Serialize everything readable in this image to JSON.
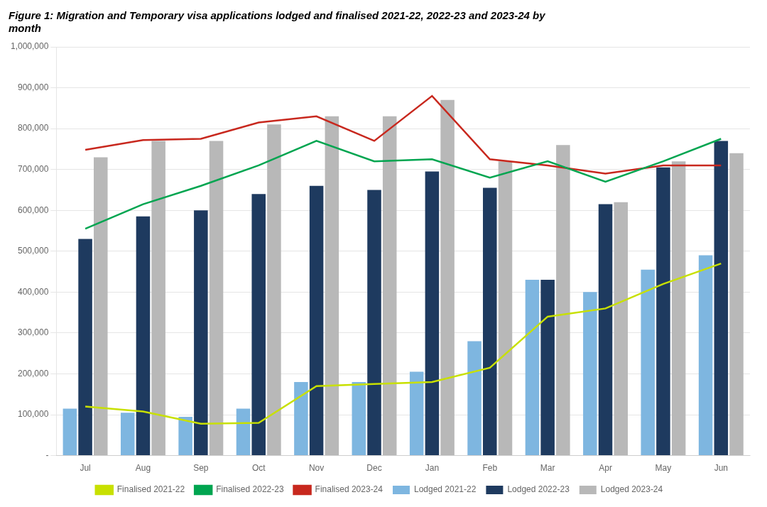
{
  "chart_data": {
    "type": "bar",
    "title": "Figure 1:",
    "subtitle": "Migration and Temporary visa applications lodged and finalised 2021-22, 2022-23 and 2023-24 by\nmonth",
    "categories": [
      "Jul",
      "Aug",
      "Sep",
      "Oct",
      "Nov",
      "Dec",
      "Jan",
      "Feb",
      "Mar",
      "Apr",
      "May",
      "Jun"
    ],
    "series": [
      {
        "name": "Lodged 2021-22",
        "type": "bar",
        "color": "#7EB6E0",
        "values": [
          115000,
          105000,
          95000,
          115000,
          180000,
          180000,
          205000,
          280000,
          430000,
          400000,
          455000,
          490000
        ]
      },
      {
        "name": "Lodged 2022-23",
        "type": "bar",
        "color": "#1E3A5F",
        "values": [
          530000,
          585000,
          600000,
          640000,
          660000,
          650000,
          695000,
          655000,
          430000,
          615000,
          705000,
          770000
        ]
      },
      {
        "name": "Lodged 2023-24",
        "type": "bar",
        "color": "#B8B8B8",
        "values": [
          730000,
          770000,
          770000,
          810000,
          830000,
          830000,
          870000,
          720000,
          760000,
          620000,
          720000,
          740000
        ]
      },
      {
        "name": "Finalised 2021-22",
        "type": "line",
        "color": "#C8E000",
        "values": [
          120000,
          108000,
          78000,
          80000,
          170000,
          175000,
          180000,
          215000,
          340000,
          360000,
          420000,
          470000
        ]
      },
      {
        "name": "Finalised 2022-23",
        "type": "line",
        "color": "#00A550",
        "values": [
          555000,
          615000,
          660000,
          710000,
          770000,
          720000,
          725000,
          680000,
          720000,
          670000,
          720000,
          775000
        ]
      },
      {
        "name": "Finalised 2023-24",
        "type": "line",
        "color": "#C8281E",
        "values": [
          748000,
          772000,
          775000,
          815000,
          830000,
          770000,
          880000,
          725000,
          710000,
          690000,
          710000,
          710000
        ]
      }
    ],
    "ylim": [
      0,
      1000000
    ],
    "yticks": [
      {
        "value": 0,
        "label": "-"
      },
      {
        "value": 100000,
        "label": "100,000"
      },
      {
        "value": 200000,
        "label": "200,000"
      },
      {
        "value": 300000,
        "label": "300,000"
      },
      {
        "value": 400000,
        "label": "400,000"
      },
      {
        "value": 500000,
        "label": "500,000"
      },
      {
        "value": 600000,
        "label": "600,000"
      },
      {
        "value": 700000,
        "label": "700,000"
      },
      {
        "value": 800000,
        "label": "800,000"
      },
      {
        "value": 900000,
        "label": "900,000"
      },
      {
        "value": 1000000,
        "label": "1,000,000"
      }
    ],
    "grid": "y",
    "legend": "bottom"
  }
}
